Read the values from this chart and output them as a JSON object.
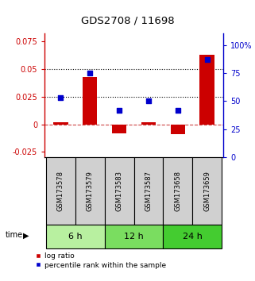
{
  "title": "GDS2708 / 11698",
  "samples": [
    "GSM173578",
    "GSM173579",
    "GSM173583",
    "GSM173587",
    "GSM173658",
    "GSM173659"
  ],
  "log_ratio": [
    0.002,
    0.043,
    -0.008,
    0.002,
    -0.009,
    0.063
  ],
  "percentile_rank": [
    53,
    75,
    42,
    50,
    42,
    87
  ],
  "time_groups": [
    {
      "label": "6 h",
      "cols": [
        0,
        1
      ],
      "color": "#b8f0a0"
    },
    {
      "label": "12 h",
      "cols": [
        2,
        3
      ],
      "color": "#7add60"
    },
    {
      "label": "24 h",
      "cols": [
        4,
        5
      ],
      "color": "#44cc30"
    }
  ],
  "bar_color": "#cc0000",
  "dot_color": "#0000cc",
  "left_ylim": [
    -0.03,
    0.082
  ],
  "right_ylim": [
    0,
    110
  ],
  "left_yticks": [
    -0.025,
    0,
    0.025,
    0.05,
    0.075
  ],
  "left_ytick_labels": [
    "-0.025",
    "0",
    "0.025",
    "0.05",
    "0.075"
  ],
  "right_yticks": [
    0,
    25,
    50,
    75,
    100
  ],
  "right_ytick_labels": [
    "0",
    "25",
    "50",
    "75",
    "100%"
  ],
  "hline_y": [
    0.025,
    0.05
  ],
  "legend_labels": [
    "log ratio",
    "percentile rank within the sample"
  ],
  "time_label": "time",
  "sample_bg": "#d0d0d0",
  "bar_width": 0.5
}
